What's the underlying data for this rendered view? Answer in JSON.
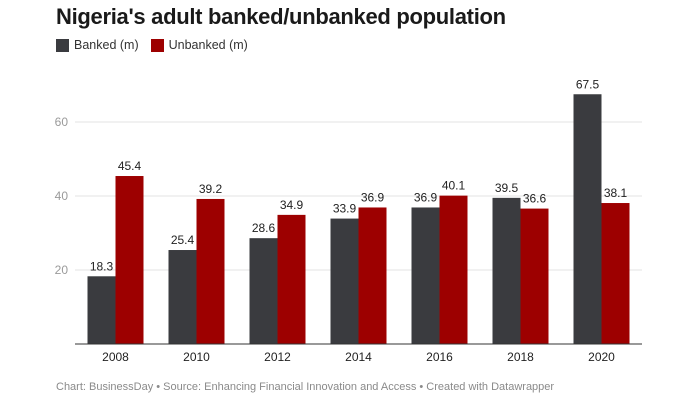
{
  "chart_data": {
    "type": "bar",
    "title": "Nigeria's adult banked/unbanked population",
    "categories": [
      "2008",
      "2010",
      "2012",
      "2014",
      "2016",
      "2018",
      "2020"
    ],
    "series": [
      {
        "name": "Banked (m)",
        "color": "#3a3b3f",
        "values": [
          18.3,
          25.4,
          28.6,
          33.9,
          36.9,
          39.5,
          67.5
        ]
      },
      {
        "name": "Unbanked (m)",
        "color": "#9d0000",
        "values": [
          45.4,
          39.2,
          34.9,
          36.9,
          40.1,
          36.6,
          38.1
        ]
      }
    ],
    "yticks": [
      20,
      40,
      60
    ],
    "ylim": [
      0,
      72
    ],
    "xlabel": "",
    "ylabel": "",
    "grid": true,
    "legend": "top-left"
  },
  "footer": "Chart: BusinessDay • Source: Enhancing Financial Innovation and Access • Created with Datawrapper"
}
